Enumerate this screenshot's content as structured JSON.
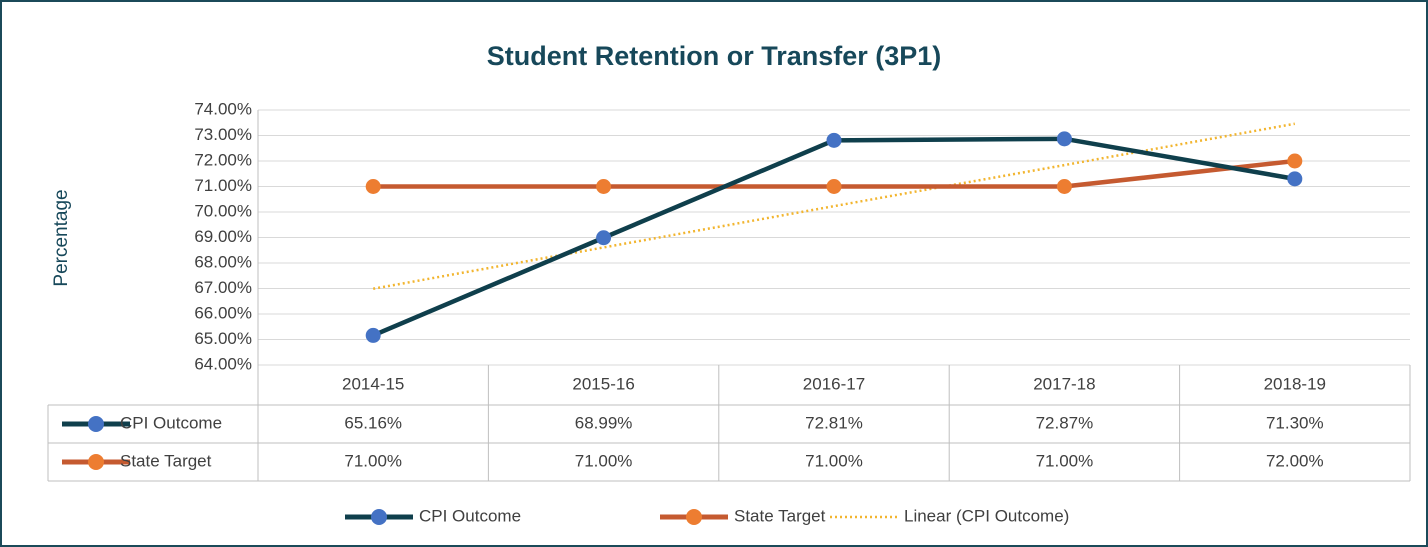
{
  "chart_data": {
    "type": "line",
    "title": "Student Retention or Transfer (3P1)",
    "y_label": "Percentage",
    "categories": [
      "2014-15",
      "2015-16",
      "2016-17",
      "2017-18",
      "2018-19"
    ],
    "series": [
      {
        "name": "CPI Outcome",
        "color": "#0f3f4c",
        "marker_color": "#4472c4",
        "values": [
          65.16,
          68.99,
          72.81,
          72.87,
          71.3
        ],
        "value_labels": [
          "65.16%",
          "68.99%",
          "72.81%",
          "72.87%",
          "71.30%"
        ]
      },
      {
        "name": "State Target",
        "color": "#c55a30",
        "marker_color": "#ed7d31",
        "values": [
          71,
          71,
          71,
          71,
          72
        ],
        "value_labels": [
          "71.00%",
          "71.00%",
          "71.00%",
          "71.00%",
          "72.00%"
        ]
      },
      {
        "name": "Linear (CPI Outcome)",
        "color": "#f2b52f",
        "style": "dotted",
        "values": [
          66.99,
          68.61,
          70.23,
          71.84,
          73.46
        ]
      }
    ],
    "ylim": [
      64,
      74
    ],
    "yticks": [
      {
        "value": 64,
        "label": "64.00%"
      },
      {
        "value": 65,
        "label": "65.00%"
      },
      {
        "value": 66,
        "label": "66.00%"
      },
      {
        "value": 67,
        "label": "67.00%"
      },
      {
        "value": 68,
        "label": "68.00%"
      },
      {
        "value": 69,
        "label": "69.00%"
      },
      {
        "value": 70,
        "label": "70.00%"
      },
      {
        "value": 71,
        "label": "71.00%"
      },
      {
        "value": 72,
        "label": "72.00%"
      },
      {
        "value": 73,
        "label": "73.00%"
      },
      {
        "value": 74,
        "label": "74.00%"
      }
    ],
    "grid": true,
    "legend": "bottom",
    "data_table": true
  }
}
